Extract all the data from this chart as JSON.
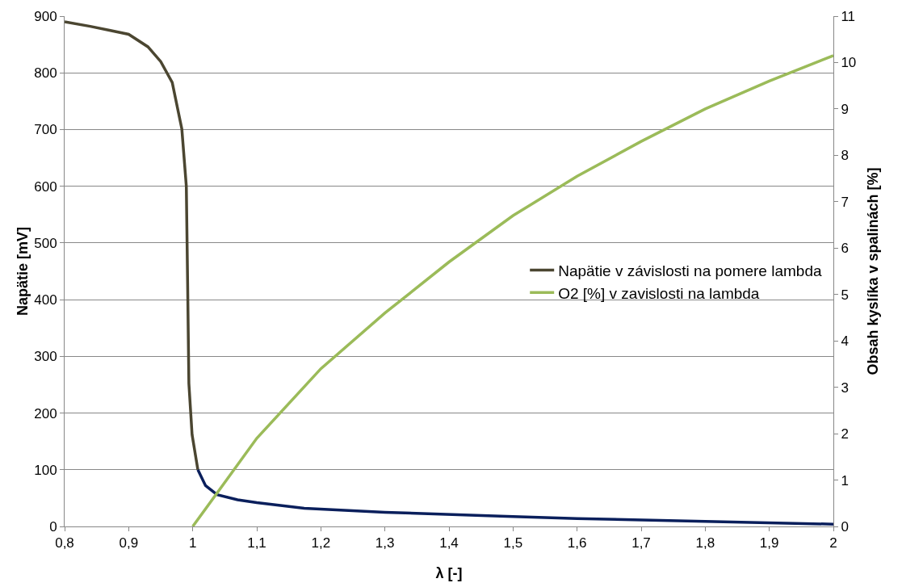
{
  "chart_data": {
    "type": "line",
    "xlabel": "λ [-]",
    "ylabel": "Napätie [mV]",
    "y2label": "Obsah kyslíka v spalinách [%]",
    "xlim": [
      0.8,
      2
    ],
    "xticks": [
      {
        "value": 0.8,
        "label": "0,8"
      },
      {
        "value": 0.9,
        "label": "0,9"
      },
      {
        "value": 1,
        "label": "1"
      },
      {
        "value": 1.1,
        "label": "1,1"
      },
      {
        "value": 1.2,
        "label": "1,2"
      },
      {
        "value": 1.3,
        "label": "1,3"
      },
      {
        "value": 1.4,
        "label": "1,4"
      },
      {
        "value": 1.5,
        "label": "1,5"
      },
      {
        "value": 1.6,
        "label": "1,6"
      },
      {
        "value": 1.7,
        "label": "1,7"
      },
      {
        "value": 1.8,
        "label": "1,8"
      },
      {
        "value": 1.9,
        "label": "1,9"
      },
      {
        "value": 2,
        "label": "2"
      }
    ],
    "ylim": [
      0,
      900
    ],
    "yticks": [
      0,
      100,
      200,
      300,
      400,
      500,
      600,
      700,
      800,
      900
    ],
    "y2lim": [
      0,
      11
    ],
    "y2ticks": [
      0,
      1,
      2,
      3,
      4,
      5,
      6,
      7,
      8,
      9,
      10,
      11
    ],
    "grid": "y",
    "legend": "right",
    "marker": "none",
    "line_style": "solid",
    "series": [
      {
        "name": "Napätie v závislosti na pomere lambda",
        "color": "#4b4631",
        "x": [
          0.8,
          0.84,
          0.87,
          0.9,
          0.93,
          0.95,
          0.968,
          0.983,
          0.99,
          0.992,
          0.994,
          0.999,
          1.008
        ],
        "values": [
          890,
          882,
          875,
          868,
          846,
          820,
          783,
          701,
          600,
          432,
          252,
          162,
          100
        ]
      },
      {
        "color": "#0a1f5c",
        "x": [
          1.008,
          1.02,
          1.038,
          1.07,
          1.1,
          1.174,
          1.3,
          1.48,
          1.6,
          1.8,
          2
        ],
        "values": [
          100,
          72,
          56,
          47,
          42,
          32,
          25,
          18,
          14,
          9,
          4
        ]
      },
      {
        "name": "O2 [%] v zavislosti na lambda",
        "color": "#9bbb59",
        "axis": "y2",
        "x": [
          1,
          1.05,
          1.1,
          1.2,
          1.3,
          1.4,
          1.5,
          1.6,
          1.7,
          1.8,
          1.9,
          2
        ],
        "values": [
          0,
          0.95,
          1.9,
          3.4,
          4.6,
          5.7,
          6.7,
          7.55,
          8.3,
          9,
          9.6,
          10.15
        ]
      }
    ]
  }
}
